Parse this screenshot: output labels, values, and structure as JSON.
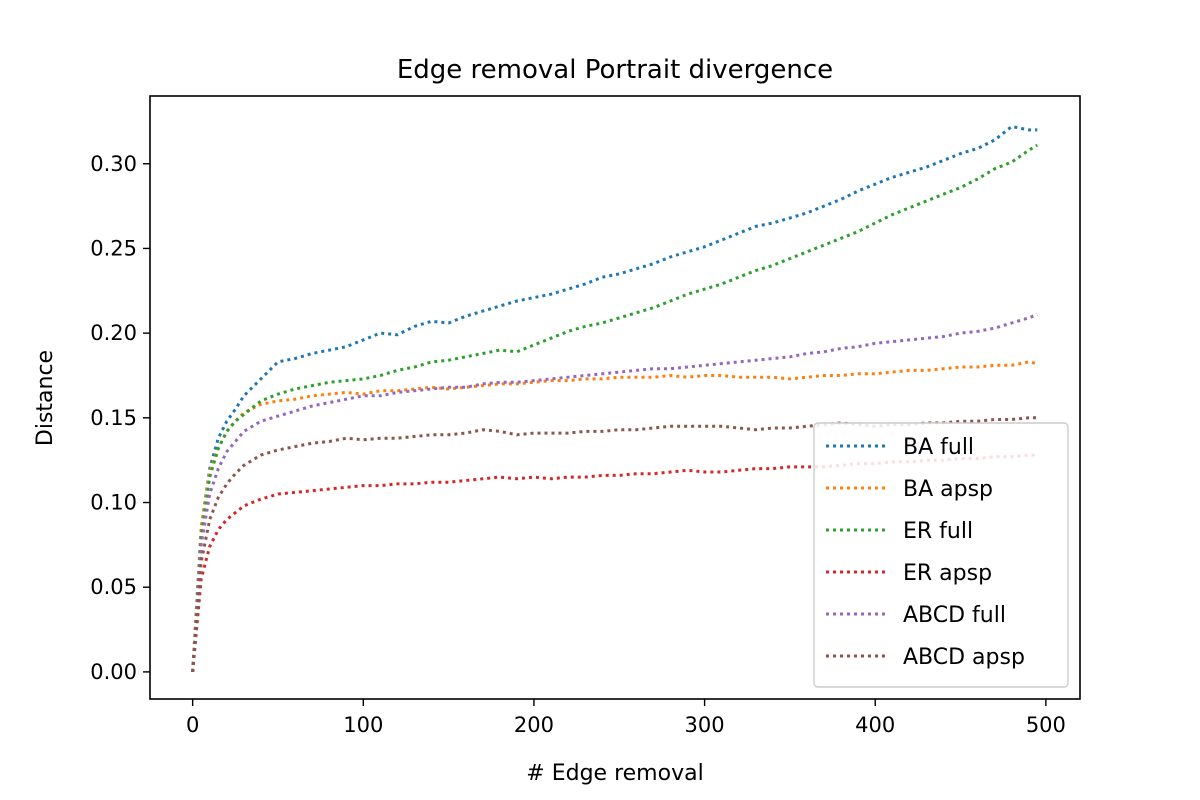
{
  "chart_data": {
    "type": "line",
    "title": "Edge removal Portrait divergence",
    "xlabel": "# Edge removal",
    "ylabel": "Distance",
    "xlim": [
      -25,
      520
    ],
    "ylim": [
      -0.016,
      0.34
    ],
    "x_ticks": [
      0,
      100,
      200,
      300,
      400,
      500
    ],
    "y_ticks": [
      0.0,
      0.05,
      0.1,
      0.15,
      0.2,
      0.25,
      0.3
    ],
    "x_tick_labels": [
      "0",
      "100",
      "200",
      "300",
      "400",
      "500"
    ],
    "y_tick_labels": [
      "0.00",
      "0.05",
      "0.10",
      "0.15",
      "0.20",
      "0.25",
      "0.30"
    ],
    "grid": false,
    "legend_position": "lower right",
    "line_style": "dotted",
    "series": [
      {
        "name": "BA full",
        "color": "#1f77b4",
        "x": [
          0,
          5,
          10,
          15,
          20,
          25,
          30,
          40,
          50,
          60,
          70,
          80,
          90,
          100,
          110,
          120,
          130,
          140,
          150,
          160,
          170,
          180,
          190,
          200,
          210,
          220,
          230,
          240,
          250,
          260,
          270,
          280,
          290,
          300,
          310,
          320,
          330,
          340,
          350,
          360,
          370,
          380,
          390,
          400,
          410,
          420,
          430,
          440,
          450,
          460,
          470,
          480,
          490,
          495
        ],
        "values": [
          0.0,
          0.085,
          0.12,
          0.138,
          0.148,
          0.155,
          0.163,
          0.173,
          0.183,
          0.185,
          0.188,
          0.19,
          0.192,
          0.196,
          0.2,
          0.199,
          0.204,
          0.207,
          0.206,
          0.21,
          0.213,
          0.216,
          0.219,
          0.221,
          0.223,
          0.226,
          0.229,
          0.233,
          0.235,
          0.238,
          0.241,
          0.245,
          0.248,
          0.251,
          0.255,
          0.259,
          0.263,
          0.265,
          0.268,
          0.271,
          0.275,
          0.279,
          0.284,
          0.288,
          0.292,
          0.295,
          0.298,
          0.302,
          0.306,
          0.309,
          0.314,
          0.322,
          0.32,
          0.32
        ]
      },
      {
        "name": "BA apsp",
        "color": "#ff7f0e",
        "x": [
          0,
          5,
          10,
          15,
          20,
          25,
          30,
          40,
          50,
          60,
          70,
          80,
          90,
          100,
          110,
          120,
          130,
          140,
          150,
          160,
          170,
          180,
          190,
          200,
          210,
          220,
          230,
          240,
          250,
          260,
          270,
          280,
          290,
          300,
          310,
          320,
          330,
          340,
          350,
          360,
          370,
          380,
          390,
          400,
          410,
          420,
          430,
          440,
          450,
          460,
          470,
          480,
          490,
          495
        ],
        "values": [
          0.0,
          0.085,
          0.118,
          0.132,
          0.142,
          0.148,
          0.153,
          0.158,
          0.16,
          0.161,
          0.163,
          0.164,
          0.165,
          0.164,
          0.166,
          0.166,
          0.167,
          0.168,
          0.167,
          0.168,
          0.169,
          0.17,
          0.17,
          0.171,
          0.172,
          0.172,
          0.173,
          0.173,
          0.174,
          0.174,
          0.174,
          0.175,
          0.174,
          0.175,
          0.175,
          0.174,
          0.174,
          0.174,
          0.173,
          0.174,
          0.175,
          0.175,
          0.176,
          0.176,
          0.177,
          0.178,
          0.178,
          0.179,
          0.18,
          0.18,
          0.181,
          0.181,
          0.183,
          0.182
        ]
      },
      {
        "name": "ER full",
        "color": "#2ca02c",
        "x": [
          0,
          5,
          10,
          15,
          20,
          25,
          30,
          40,
          50,
          60,
          70,
          80,
          90,
          100,
          110,
          120,
          130,
          140,
          150,
          160,
          170,
          180,
          190,
          200,
          210,
          220,
          230,
          240,
          250,
          260,
          270,
          280,
          290,
          300,
          310,
          320,
          330,
          340,
          350,
          360,
          370,
          380,
          390,
          400,
          410,
          420,
          430,
          440,
          450,
          460,
          470,
          480,
          490,
          495
        ],
        "values": [
          0.0,
          0.08,
          0.115,
          0.132,
          0.142,
          0.148,
          0.152,
          0.16,
          0.164,
          0.167,
          0.169,
          0.171,
          0.172,
          0.173,
          0.175,
          0.178,
          0.18,
          0.183,
          0.184,
          0.186,
          0.188,
          0.19,
          0.189,
          0.193,
          0.197,
          0.201,
          0.204,
          0.206,
          0.209,
          0.212,
          0.215,
          0.219,
          0.223,
          0.226,
          0.229,
          0.233,
          0.237,
          0.24,
          0.244,
          0.248,
          0.252,
          0.256,
          0.26,
          0.265,
          0.27,
          0.274,
          0.278,
          0.282,
          0.286,
          0.291,
          0.297,
          0.301,
          0.308,
          0.311
        ]
      },
      {
        "name": "ER apsp",
        "color": "#d62728",
        "x": [
          0,
          5,
          10,
          15,
          20,
          25,
          30,
          40,
          50,
          60,
          70,
          80,
          90,
          100,
          110,
          120,
          130,
          140,
          150,
          160,
          170,
          180,
          190,
          200,
          210,
          220,
          230,
          240,
          250,
          260,
          270,
          280,
          290,
          300,
          310,
          320,
          330,
          340,
          350,
          360,
          370,
          380,
          390,
          400,
          410,
          420,
          430,
          440,
          450,
          460,
          470,
          480,
          490,
          495
        ],
        "values": [
          0.0,
          0.055,
          0.074,
          0.084,
          0.09,
          0.094,
          0.098,
          0.102,
          0.105,
          0.106,
          0.107,
          0.108,
          0.109,
          0.11,
          0.11,
          0.111,
          0.111,
          0.112,
          0.112,
          0.113,
          0.114,
          0.115,
          0.114,
          0.115,
          0.114,
          0.115,
          0.115,
          0.116,
          0.116,
          0.117,
          0.117,
          0.118,
          0.119,
          0.118,
          0.118,
          0.119,
          0.12,
          0.12,
          0.121,
          0.121,
          0.121,
          0.122,
          0.123,
          0.123,
          0.124,
          0.124,
          0.125,
          0.125,
          0.126,
          0.126,
          0.127,
          0.127,
          0.128,
          0.128
        ]
      },
      {
        "name": "ABCD full",
        "color": "#9467bd",
        "x": [
          0,
          5,
          10,
          15,
          20,
          25,
          30,
          40,
          50,
          60,
          70,
          80,
          90,
          100,
          110,
          120,
          130,
          140,
          150,
          160,
          170,
          180,
          190,
          200,
          210,
          220,
          230,
          240,
          250,
          260,
          270,
          280,
          290,
          300,
          310,
          320,
          330,
          340,
          350,
          360,
          370,
          380,
          390,
          400,
          410,
          420,
          430,
          440,
          450,
          460,
          470,
          480,
          490,
          495
        ],
        "values": [
          0.0,
          0.075,
          0.105,
          0.12,
          0.13,
          0.136,
          0.142,
          0.148,
          0.151,
          0.154,
          0.157,
          0.159,
          0.161,
          0.163,
          0.163,
          0.165,
          0.166,
          0.167,
          0.168,
          0.168,
          0.17,
          0.171,
          0.171,
          0.172,
          0.173,
          0.174,
          0.175,
          0.176,
          0.177,
          0.178,
          0.179,
          0.179,
          0.18,
          0.181,
          0.182,
          0.183,
          0.184,
          0.185,
          0.186,
          0.188,
          0.189,
          0.191,
          0.192,
          0.194,
          0.195,
          0.196,
          0.197,
          0.198,
          0.2,
          0.201,
          0.203,
          0.206,
          0.209,
          0.211
        ]
      },
      {
        "name": "ABCD apsp",
        "color": "#8c564b",
        "x": [
          0,
          5,
          10,
          15,
          20,
          25,
          30,
          40,
          50,
          60,
          70,
          80,
          90,
          100,
          110,
          120,
          130,
          140,
          150,
          160,
          170,
          180,
          190,
          200,
          210,
          220,
          230,
          240,
          250,
          260,
          270,
          280,
          290,
          300,
          310,
          320,
          330,
          340,
          350,
          360,
          370,
          380,
          390,
          400,
          410,
          420,
          430,
          440,
          450,
          460,
          470,
          480,
          490,
          495
        ],
        "values": [
          0.0,
          0.065,
          0.09,
          0.103,
          0.111,
          0.117,
          0.122,
          0.128,
          0.131,
          0.133,
          0.135,
          0.136,
          0.138,
          0.137,
          0.138,
          0.138,
          0.139,
          0.14,
          0.14,
          0.141,
          0.143,
          0.142,
          0.14,
          0.141,
          0.141,
          0.141,
          0.142,
          0.142,
          0.143,
          0.143,
          0.144,
          0.145,
          0.145,
          0.145,
          0.145,
          0.144,
          0.143,
          0.144,
          0.144,
          0.145,
          0.146,
          0.147,
          0.146,
          0.145,
          0.146,
          0.146,
          0.147,
          0.147,
          0.148,
          0.148,
          0.149,
          0.149,
          0.15,
          0.15
        ]
      }
    ]
  }
}
